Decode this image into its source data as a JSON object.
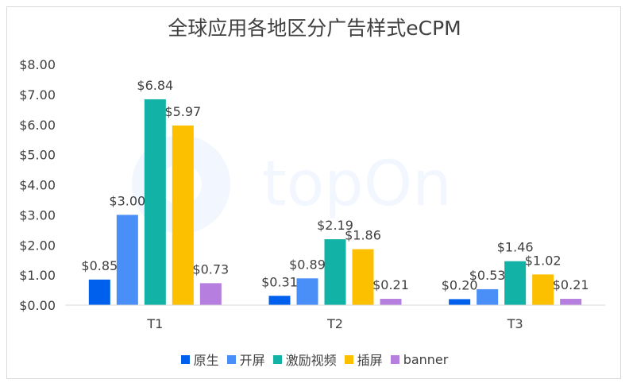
{
  "chart_data": {
    "type": "bar",
    "title": "全球应用各地区分广告样式eCPM",
    "categories": [
      "T1",
      "T2",
      "T3"
    ],
    "series": [
      {
        "name": "原生",
        "color": "#0060ee",
        "values": [
          0.85,
          0.31,
          0.2
        ],
        "labels": [
          "$0.85",
          "$0.31",
          "$0.20"
        ]
      },
      {
        "name": "开屏",
        "color": "#4a8ef8",
        "values": [
          3.0,
          0.89,
          0.53
        ],
        "labels": [
          "$3.00",
          "$0.89",
          "$0.53"
        ]
      },
      {
        "name": "激励视频",
        "color": "#12b3a6",
        "values": [
          6.84,
          2.19,
          1.46
        ],
        "labels": [
          "$6.84",
          "$2.19",
          "$1.46"
        ]
      },
      {
        "name": "插屏",
        "color": "#fdc000",
        "values": [
          5.97,
          1.86,
          1.02
        ],
        "labels": [
          "$5.97",
          "$1.86",
          "$1.02"
        ]
      },
      {
        "name": "banner",
        "color": "#b57edf",
        "values": [
          0.73,
          0.21,
          0.21
        ],
        "labels": [
          "$0.73",
          "$0.21",
          "$0.21"
        ]
      }
    ],
    "ylim": [
      0,
      8
    ],
    "yticks": [
      "$0.00",
      "$1.00",
      "$2.00",
      "$3.00",
      "$4.00",
      "$5.00",
      "$6.00",
      "$7.00",
      "$8.00"
    ],
    "xlabel": "",
    "ylabel": "",
    "grid": false,
    "legend_position": "bottom"
  },
  "watermark": "topOn"
}
